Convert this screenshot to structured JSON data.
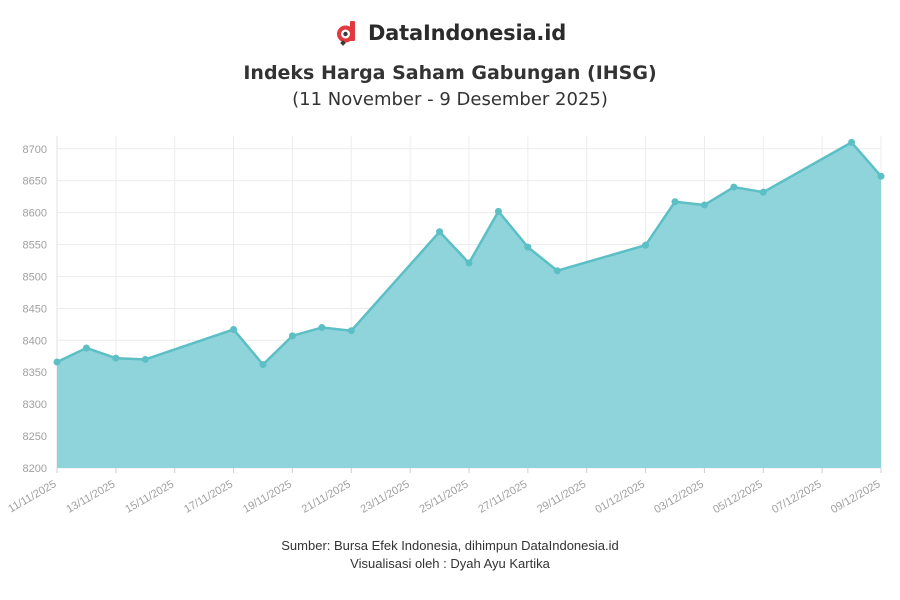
{
  "brand": {
    "name": "DataIndonesia.id",
    "accent": "#e03a3e"
  },
  "chart_data": {
    "type": "area",
    "title": "Indeks Harga Saham Gabungan (IHSG)",
    "subtitle": "(11 November - 9 Desember 2025)",
    "xlabel": "",
    "ylabel": "",
    "x": [
      "11/11/2025",
      "12/11/2025",
      "13/11/2025",
      "14/11/2025",
      "17/11/2025",
      "18/11/2025",
      "19/11/2025",
      "20/11/2025",
      "21/11/2025",
      "24/11/2025",
      "25/11/2025",
      "26/11/2025",
      "27/11/2025",
      "28/11/2025",
      "01/12/2025",
      "02/12/2025",
      "03/12/2025",
      "04/12/2025",
      "05/12/2025",
      "08/12/2025",
      "09/12/2025"
    ],
    "x_day_index": [
      0,
      1,
      2,
      3,
      6,
      7,
      8,
      9,
      10,
      13,
      14,
      15,
      16,
      17,
      20,
      21,
      22,
      23,
      24,
      27,
      28
    ],
    "values": [
      8366,
      8388,
      8372,
      8370,
      8417,
      8362,
      8407,
      8420,
      8415,
      8570,
      8521,
      8602,
      8546,
      8509,
      8549,
      8617,
      8612,
      8640,
      8632,
      8710,
      8657
    ],
    "x_tick_labels": [
      "11/11/2025",
      "13/11/2025",
      "15/11/2025",
      "17/11/2025",
      "19/11/2025",
      "21/11/2025",
      "23/11/2025",
      "25/11/2025",
      "27/11/2025",
      "29/11/2025",
      "01/12/2025",
      "03/12/2025",
      "05/12/2025",
      "07/12/2025",
      "09/12/2025"
    ],
    "x_tick_day_index": [
      0,
      2,
      4,
      6,
      8,
      10,
      12,
      14,
      16,
      18,
      20,
      22,
      24,
      26,
      28
    ],
    "y_ticks": [
      8200,
      8250,
      8300,
      8350,
      8400,
      8450,
      8500,
      8550,
      8600,
      8650,
      8700
    ],
    "ylim": [
      8200,
      8720
    ],
    "xlim_days": [
      0,
      28
    ],
    "grid": true,
    "colors": {
      "line": "#5bbfc5",
      "fill": "#8fd4db",
      "marker": "#5bbfc5",
      "grid": "#ececec",
      "tick_text": "#a0a0a0"
    }
  },
  "footer": {
    "source": "Sumber: Bursa Efek Indonesia, dihimpun DataIndonesia.id",
    "credit": "Visualisasi oleh : Dyah Ayu Kartika"
  }
}
